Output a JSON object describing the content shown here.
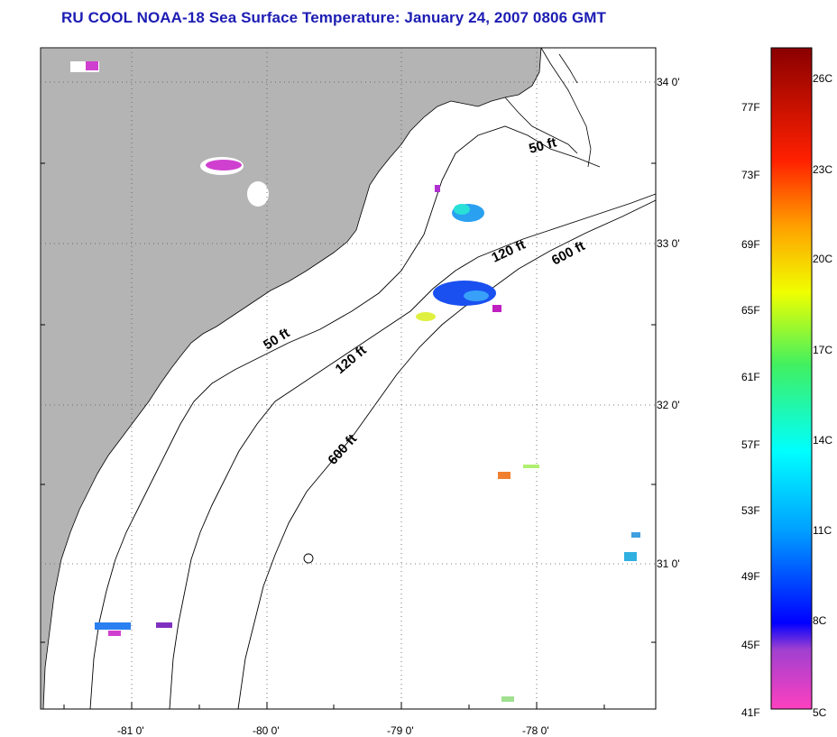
{
  "title": "RU COOL  NOAA-18  Sea Surface Temperature:  January 24, 2007 0806 GMT",
  "map": {
    "lon_ticks": [
      "-81 0'",
      "-80 0'",
      "-79 0'",
      "-78 0'"
    ],
    "lat_ticks": [
      "34 0'",
      "33 0'",
      "32 0'",
      "31 0'"
    ],
    "depth_labels": [
      "50 ft",
      "120 ft",
      "600 ft",
      "50 ft",
      "120 ft",
      "600 ft"
    ],
    "colors": {
      "land": "#b4b4b4",
      "water": "#ffffff",
      "grid": "#555555",
      "title": "#1c1cb4"
    }
  },
  "colorbar": {
    "fahrenheit_labels": [
      "77F",
      "73F",
      "69F",
      "65F",
      "61F",
      "57F",
      "53F",
      "49F",
      "45F",
      "41F"
    ],
    "celsius_labels": [
      "26C",
      "23C",
      "20C",
      "17C",
      "14C",
      "11C",
      "8C",
      "5C"
    ]
  }
}
